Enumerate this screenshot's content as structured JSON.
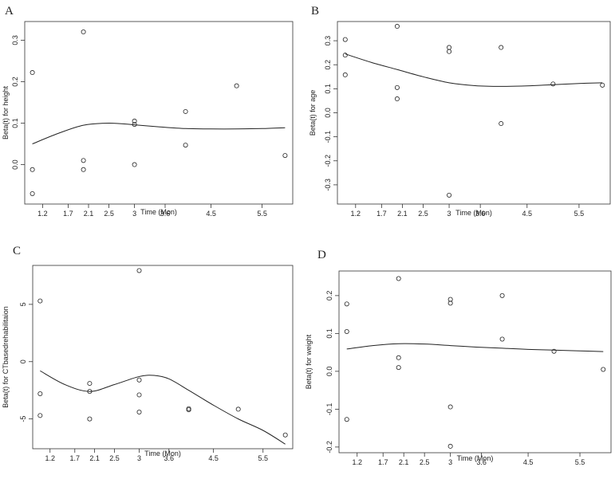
{
  "figure": {
    "width": 771,
    "height": 606
  },
  "chart_data": [
    {
      "panel": "A",
      "type": "scatter",
      "xlabel": "Time (Mon)",
      "ylabel": "Beta(t) for height",
      "xlim": [
        0.85,
        6.1
      ],
      "ylim": [
        -0.095,
        0.345
      ],
      "xticks": [
        1.2,
        1.7,
        2.1,
        2.5,
        3,
        3.6,
        4.5,
        5.5
      ],
      "xtick_labels": [
        "1.2",
        "1.7",
        "2.1",
        "2.5",
        "3",
        "3.6",
        "4.5",
        "5.5"
      ],
      "yticks": [
        0,
        0.1,
        0.2,
        0.3
      ],
      "ytick_labels": [
        "0.0",
        "0.1",
        "0.2",
        "0.3"
      ],
      "points": [
        {
          "x": 1,
          "y": 0.222
        },
        {
          "x": 1,
          "y": -0.012
        },
        {
          "x": 1,
          "y": -0.07
        },
        {
          "x": 2,
          "y": 0.32
        },
        {
          "x": 2,
          "y": 0.01
        },
        {
          "x": 2,
          "y": -0.012
        },
        {
          "x": 3,
          "y": 0.105
        },
        {
          "x": 3,
          "y": 0.097
        },
        {
          "x": 3,
          "y": 0.0
        },
        {
          "x": 4,
          "y": 0.128
        },
        {
          "x": 4,
          "y": 0.047
        },
        {
          "x": 5,
          "y": 0.19
        },
        {
          "x": 5.95,
          "y": 0.022
        }
      ],
      "curve": {
        "x": [
          1.0,
          1.5,
          2.0,
          2.5,
          3.0,
          3.5,
          4.0,
          4.5,
          5.0,
          5.5,
          5.95
        ],
        "y": [
          0.05,
          0.075,
          0.095,
          0.1,
          0.096,
          0.091,
          0.087,
          0.086,
          0.086,
          0.087,
          0.089
        ]
      }
    },
    {
      "panel": "B",
      "type": "scatter",
      "xlabel": "Time (Mon)",
      "ylabel": "Beta(t) for age",
      "xlim": [
        0.85,
        6.1
      ],
      "ylim": [
        -0.38,
        0.38
      ],
      "xticks": [
        1.2,
        1.7,
        2.1,
        2.5,
        3,
        3.6,
        4.5,
        5.5
      ],
      "xtick_labels": [
        "1.2",
        "1.7",
        "2.1",
        "2.5",
        "3",
        "3.6",
        "4.5",
        "5.5"
      ],
      "yticks": [
        -0.3,
        -0.2,
        -0.1,
        0,
        0.1,
        0.2,
        0.3
      ],
      "ytick_labels": [
        "-0.3",
        "-0.2",
        "-0.1",
        "0.0",
        "0.1",
        "0.2",
        "0.3"
      ],
      "points": [
        {
          "x": 1,
          "y": 0.305
        },
        {
          "x": 1,
          "y": 0.24
        },
        {
          "x": 1,
          "y": 0.158
        },
        {
          "x": 2,
          "y": 0.36
        },
        {
          "x": 2,
          "y": 0.105
        },
        {
          "x": 2,
          "y": 0.058
        },
        {
          "x": 3,
          "y": 0.272
        },
        {
          "x": 3,
          "y": 0.255
        },
        {
          "x": 3,
          "y": -0.343
        },
        {
          "x": 4,
          "y": 0.272
        },
        {
          "x": 4,
          "y": -0.045
        },
        {
          "x": 5,
          "y": 0.12
        },
        {
          "x": 5.95,
          "y": 0.115
        }
      ],
      "curve": {
        "x": [
          1.0,
          1.5,
          2.0,
          2.5,
          3.0,
          3.5,
          4.0,
          4.5,
          5.0,
          5.5,
          5.95
        ],
        "y": [
          0.245,
          0.21,
          0.18,
          0.15,
          0.125,
          0.113,
          0.11,
          0.112,
          0.117,
          0.122,
          0.125
        ]
      }
    },
    {
      "panel": "C",
      "type": "scatter",
      "xlabel": "Time (Mon)",
      "ylabel": "Beta(t) for CTbasedrehabilitaion",
      "xlim": [
        0.85,
        6.1
      ],
      "ylim": [
        -7.6,
        8.4
      ],
      "xticks": [
        1.2,
        1.7,
        2.1,
        2.5,
        3,
        3.6,
        4.5,
        5.5
      ],
      "xtick_labels": [
        "1.2",
        "1.7",
        "2.1",
        "2.5",
        "3",
        "3.6",
        "4.5",
        "5.5"
      ],
      "yticks": [
        -5,
        0,
        5
      ],
      "ytick_labels": [
        "-5",
        "0",
        "5"
      ],
      "points": [
        {
          "x": 1,
          "y": 5.3
        },
        {
          "x": 1,
          "y": -2.8
        },
        {
          "x": 1,
          "y": -4.7
        },
        {
          "x": 2,
          "y": -1.9
        },
        {
          "x": 2,
          "y": -2.6
        },
        {
          "x": 2,
          "y": -5.0
        },
        {
          "x": 3,
          "y": 7.95
        },
        {
          "x": 3,
          "y": -1.6
        },
        {
          "x": 3,
          "y": -2.9
        },
        {
          "x": 3,
          "y": -4.4
        },
        {
          "x": 4,
          "y": -4.1
        },
        {
          "x": 4,
          "y": -4.2
        },
        {
          "x": 5,
          "y": -4.15
        },
        {
          "x": 5.95,
          "y": -6.4
        }
      ],
      "curve": {
        "x": [
          1.0,
          1.5,
          2.0,
          2.5,
          3.0,
          3.3,
          3.6,
          4.0,
          4.5,
          5.0,
          5.5,
          5.95
        ],
        "y": [
          -0.8,
          -2.0,
          -2.6,
          -2.0,
          -1.3,
          -1.2,
          -1.5,
          -2.5,
          -3.8,
          -5.0,
          -6.0,
          -7.2
        ]
      }
    },
    {
      "panel": "D",
      "type": "scatter",
      "xlabel": "Time (Mon)",
      "ylabel": "Beta(t) for weight",
      "xlim": [
        0.85,
        6.1
      ],
      "ylim": [
        -0.215,
        0.265
      ],
      "xticks": [
        1.2,
        1.7,
        2.1,
        2.5,
        3,
        3.6,
        4.5,
        5.5
      ],
      "xtick_labels": [
        "1.2",
        "1.7",
        "2.1",
        "2.5",
        "3",
        "3.6",
        "4.5",
        "5.5"
      ],
      "yticks": [
        -0.2,
        -0.1,
        0,
        0.1,
        0.2
      ],
      "ytick_labels": [
        "-0.2",
        "-0.1",
        "0.0",
        "0.1",
        "0.2"
      ],
      "points": [
        {
          "x": 1,
          "y": 0.178
        },
        {
          "x": 1,
          "y": 0.105
        },
        {
          "x": 1,
          "y": -0.127
        },
        {
          "x": 2,
          "y": 0.245
        },
        {
          "x": 2,
          "y": 0.036
        },
        {
          "x": 2,
          "y": 0.01
        },
        {
          "x": 3,
          "y": 0.19
        },
        {
          "x": 3,
          "y": 0.18
        },
        {
          "x": 3,
          "y": -0.094
        },
        {
          "x": 3,
          "y": -0.198
        },
        {
          "x": 4,
          "y": 0.2
        },
        {
          "x": 4,
          "y": 0.085
        },
        {
          "x": 5,
          "y": 0.053
        },
        {
          "x": 5.95,
          "y": 0.005
        }
      ],
      "curve": {
        "x": [
          1.0,
          1.5,
          2.0,
          2.5,
          3.0,
          3.5,
          4.0,
          4.5,
          5.0,
          5.5,
          5.95
        ],
        "y": [
          0.059,
          0.068,
          0.073,
          0.072,
          0.068,
          0.064,
          0.061,
          0.058,
          0.056,
          0.054,
          0.052
        ]
      }
    }
  ]
}
